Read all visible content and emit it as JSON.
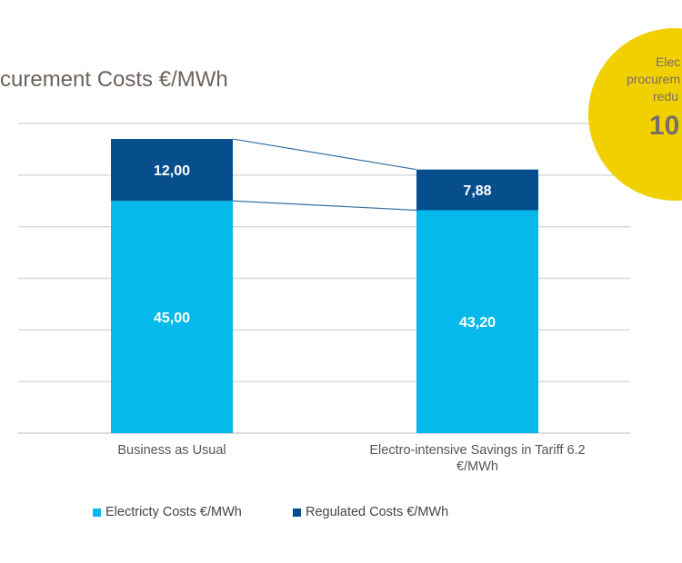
{
  "title": "curement Costs €/MWh",
  "callout": {
    "lines": [
      "Elec",
      "procurem",
      "redu"
    ],
    "value": "10",
    "color": "#f0d000"
  },
  "chart_data": {
    "type": "bar",
    "stacked": true,
    "categories": [
      "Business as Usual",
      "Electro-intensive Savings in Tariff 6.2 €/MWh"
    ],
    "series": [
      {
        "name": "Electricty Costs €/MWh",
        "values": [
          45.0,
          43.2
        ],
        "labels": [
          "45,00",
          "43,20"
        ],
        "color": "#05b9ea"
      },
      {
        "name": "Regulated Costs €/MWh",
        "values": [
          12.0,
          7.88
        ],
        "labels": [
          "12,00",
          "7,88"
        ],
        "color": "#074f8c"
      }
    ],
    "ylim": [
      0,
      60
    ],
    "gridlines": [
      10,
      20,
      30,
      40,
      50,
      60
    ],
    "grid": true,
    "connector_lines": true,
    "legend_placement": "bottom-left"
  }
}
